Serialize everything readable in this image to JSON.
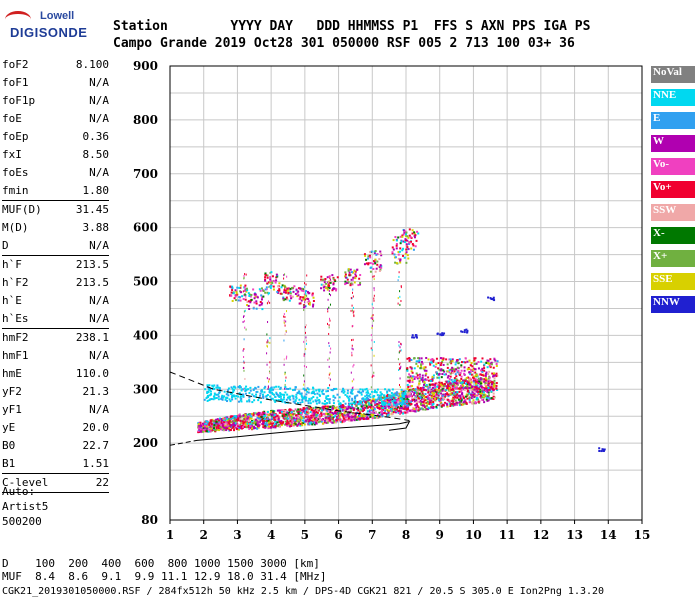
{
  "logo": {
    "line1": "Lowell",
    "line2": "DIGISONDE"
  },
  "header": {
    "labels": "Station        YYYY DAY   DDD HHMMSS P1  FFS S AXN PPS IGA PS",
    "values": "Campo Grande 2019 Oct28 301 050000 RSF 005 2 713 100 03+ 36"
  },
  "params": [
    {
      "group": [
        {
          "label": "foF2",
          "value": "8.100"
        },
        {
          "label": "foF1",
          "value": "N/A"
        },
        {
          "label": "foF1p",
          "value": "N/A"
        },
        {
          "label": "foE",
          "value": "N/A"
        },
        {
          "label": "foEp",
          "value": "0.36"
        },
        {
          "label": "fxI",
          "value": "8.50"
        },
        {
          "label": "foEs",
          "value": "N/A"
        },
        {
          "label": "fmin",
          "value": "1.80"
        }
      ]
    },
    {
      "group": [
        {
          "label": "MUF(D)",
          "value": "31.45"
        },
        {
          "label": "M(D)",
          "value": "3.88"
        },
        {
          "label": "D",
          "value": "N/A"
        }
      ]
    },
    {
      "group": [
        {
          "label": "h`F",
          "value": "213.5"
        },
        {
          "label": "h`F2",
          "value": "213.5"
        },
        {
          "label": "h`E",
          "value": "N/A"
        },
        {
          "label": "h`Es",
          "value": "N/A"
        }
      ]
    },
    {
      "group": [
        {
          "label": "hmF2",
          "value": "238.1"
        },
        {
          "label": "hmF1",
          "value": "N/A"
        },
        {
          "label": "hmE",
          "value": "110.0"
        },
        {
          "label": "yF2",
          "value": "21.3"
        },
        {
          "label": "yF1",
          "value": "N/A"
        },
        {
          "label": "yE",
          "value": "20.0"
        },
        {
          "label": "B0",
          "value": "22.7"
        },
        {
          "label": "B1",
          "value": "1.51"
        }
      ]
    },
    {
      "group": [
        {
          "label": "C-level",
          "value": "22"
        }
      ]
    }
  ],
  "auto": {
    "line1": "Auto:",
    "line2": "Artist5",
    "line3": "500200"
  },
  "legend": [
    {
      "label": "NoVal",
      "color": "#808080"
    },
    {
      "label": "NNE",
      "color": "#00d8f0"
    },
    {
      "label": "E",
      "color": "#30a0f0"
    },
    {
      "label": "W",
      "color": "#b000b0"
    },
    {
      "label": "Vo-",
      "color": "#f040c0"
    },
    {
      "label": "Vo+",
      "color": "#f00030"
    },
    {
      "label": "SSW",
      "color": "#f0a8a8"
    },
    {
      "label": "X-",
      "color": "#007800"
    },
    {
      "label": "X+",
      "color": "#70b040"
    },
    {
      "label": "SSE",
      "color": "#d8d000"
    },
    {
      "label": "NNW",
      "color": "#2020d0"
    }
  ],
  "footer": {
    "line1": "D    100  200  400  600  800 1000 1500 3000 [km]",
    "line2": "MUF  8.4  8.6  9.1  9.9 11.1 12.9 18.0 31.4 [MHz]",
    "line3": "CGK21_2019301050000.RSF / 284fx512h 50 kHz 2.5 km / DPS-4D CGK21 821 / 20.5 S 305.0 E Ion2Png 1.3.20"
  },
  "chart_data": {
    "type": "scatter",
    "title": "",
    "xlabel": "",
    "ylabel": "",
    "xlim": [
      1,
      15
    ],
    "ylim": [
      80,
      900
    ],
    "xticks": [
      1,
      2,
      3,
      4,
      5,
      6,
      7,
      8,
      9,
      10,
      11,
      12,
      13,
      14,
      15
    ],
    "yticks": [
      80,
      100,
      200,
      300,
      400,
      500,
      600,
      700,
      800,
      900
    ],
    "ytick_labels": [
      "80",
      "",
      "200",
      "300",
      "400",
      "500",
      "600",
      "700",
      "800",
      "900"
    ],
    "grid": true,
    "legend_placement": "right",
    "series": [
      {
        "name": "F-trace lower edge",
        "values": [
          [
            1.8,
            222
          ],
          [
            3,
            226
          ],
          [
            4,
            230
          ],
          [
            5,
            235
          ],
          [
            6,
            240
          ],
          [
            7,
            248
          ],
          [
            8,
            258
          ],
          [
            9,
            268
          ],
          [
            10,
            275
          ],
          [
            10.5,
            280
          ]
        ]
      },
      {
        "name": "F-trace upper edge",
        "values": [
          [
            1.8,
            240
          ],
          [
            3,
            255
          ],
          [
            4,
            262
          ],
          [
            5,
            268
          ],
          [
            6,
            272
          ],
          [
            7,
            285
          ],
          [
            8,
            300
          ],
          [
            9,
            315
          ],
          [
            10,
            325
          ],
          [
            10.5,
            320
          ]
        ]
      },
      {
        "name": "oblique echoes",
        "values": [
          [
            2.5,
            300
          ],
          [
            3.5,
            290
          ],
          [
            4.5,
            295
          ],
          [
            5.5,
            300
          ],
          [
            6.5,
            298
          ],
          [
            7.5,
            305
          ]
        ]
      },
      {
        "name": "second hop",
        "values": [
          [
            3.2,
            460
          ],
          [
            4,
            500
          ],
          [
            5,
            480
          ],
          [
            6,
            520
          ],
          [
            7,
            540
          ],
          [
            7.8,
            560
          ],
          [
            8.2,
            590
          ]
        ]
      },
      {
        "name": "NNW echoes",
        "values": [
          [
            8.2,
            400
          ],
          [
            9.0,
            405
          ],
          [
            9.7,
            410
          ],
          [
            10.5,
            470
          ],
          [
            13.8,
            190
          ]
        ]
      }
    ],
    "profile_line": [
      [
        1.8,
        205
      ],
      [
        3,
        212
      ],
      [
        4,
        218
      ],
      [
        5,
        224
      ],
      [
        6,
        228
      ],
      [
        7,
        232
      ],
      [
        7.8,
        236
      ],
      [
        8.1,
        240
      ],
      [
        8.0,
        228
      ],
      [
        7.5,
        224
      ]
    ],
    "dashed_line": [
      [
        1,
        332
      ],
      [
        2.3,
        300
      ],
      [
        4,
        280
      ],
      [
        6,
        260
      ],
      [
        7.5,
        248
      ],
      [
        8.1,
        242
      ]
    ],
    "dashed_lower": [
      [
        1,
        196
      ],
      [
        1.8,
        205
      ]
    ]
  }
}
